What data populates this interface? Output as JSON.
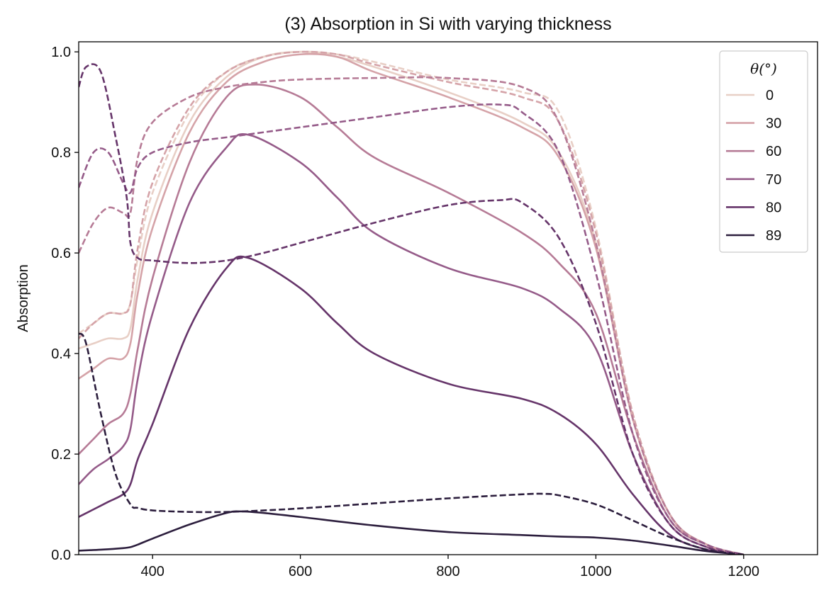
{
  "chart_data": {
    "type": "line",
    "title": "(3) Absorption in Si with varying thickness",
    "xlabel": "",
    "ylabel": "Absorption",
    "xlim": [
      300,
      1300
    ],
    "ylim": [
      0.0,
      1.02
    ],
    "xticks": [
      400,
      600,
      800,
      1000,
      1200
    ],
    "yticks": [
      0.0,
      0.2,
      0.4,
      0.6,
      0.8,
      1.0
    ],
    "xtick_labels": [
      "400",
      "600",
      "800",
      "1000",
      "1200"
    ],
    "ytick_labels": [
      "0.0",
      "0.2",
      "0.4",
      "0.6",
      "0.8",
      "1.0"
    ],
    "grid": false,
    "legend": {
      "title": "θ(°)",
      "placement": "top-right",
      "entries": [
        "0",
        "30",
        "60",
        "70",
        "80",
        "89"
      ]
    },
    "colors": [
      "#e8cfc6",
      "#d5a3a8",
      "#b67b96",
      "#955b89",
      "#66356a",
      "#2c1e3d"
    ],
    "series": [
      {
        "name": "0",
        "linestyle": "solid",
        "x": [
          300,
          320,
          340,
          360,
          370,
          380,
          400,
          450,
          500,
          550,
          600,
          650,
          700,
          800,
          900,
          950,
          1000,
          1050,
          1100,
          1150,
          1200
        ],
        "y": [
          0.41,
          0.42,
          0.43,
          0.43,
          0.45,
          0.55,
          0.68,
          0.86,
          0.95,
          0.99,
          1.0,
          0.99,
          0.97,
          0.92,
          0.86,
          0.8,
          0.62,
          0.27,
          0.08,
          0.02,
          0.0
        ]
      },
      {
        "name": "30",
        "linestyle": "solid",
        "x": [
          300,
          320,
          340,
          360,
          370,
          380,
          400,
          450,
          500,
          550,
          600,
          650,
          700,
          800,
          900,
          950,
          1000,
          1050,
          1100,
          1150,
          1200
        ],
        "y": [
          0.35,
          0.37,
          0.39,
          0.39,
          0.42,
          0.52,
          0.65,
          0.84,
          0.94,
          0.98,
          0.995,
          0.99,
          0.96,
          0.91,
          0.85,
          0.79,
          0.61,
          0.27,
          0.08,
          0.02,
          0.0
        ]
      },
      {
        "name": "60",
        "linestyle": "solid",
        "x": [
          300,
          320,
          340,
          360,
          370,
          380,
          400,
          450,
          500,
          540,
          600,
          650,
          700,
          800,
          900,
          950,
          1000,
          1050,
          1100,
          1150,
          1200
        ],
        "y": [
          0.2,
          0.23,
          0.26,
          0.28,
          0.32,
          0.41,
          0.55,
          0.78,
          0.91,
          0.935,
          0.91,
          0.85,
          0.79,
          0.72,
          0.64,
          0.58,
          0.48,
          0.24,
          0.07,
          0.02,
          0.0
        ]
      },
      {
        "name": "70",
        "linestyle": "solid",
        "x": [
          300,
          320,
          340,
          360,
          370,
          380,
          400,
          450,
          500,
          530,
          600,
          650,
          700,
          800,
          900,
          950,
          1000,
          1050,
          1100,
          1150,
          1200
        ],
        "y": [
          0.14,
          0.17,
          0.19,
          0.215,
          0.25,
          0.35,
          0.48,
          0.7,
          0.81,
          0.835,
          0.78,
          0.71,
          0.64,
          0.57,
          0.53,
          0.49,
          0.41,
          0.2,
          0.06,
          0.015,
          0.0
        ]
      },
      {
        "name": "80",
        "linestyle": "solid",
        "x": [
          300,
          320,
          340,
          360,
          370,
          380,
          400,
          450,
          500,
          530,
          600,
          650,
          700,
          800,
          900,
          950,
          1000,
          1050,
          1100,
          1150,
          1200
        ],
        "y": [
          0.075,
          0.09,
          0.105,
          0.12,
          0.14,
          0.19,
          0.26,
          0.45,
          0.57,
          0.59,
          0.53,
          0.46,
          0.4,
          0.34,
          0.31,
          0.28,
          0.22,
          0.12,
          0.04,
          0.01,
          0.0
        ]
      },
      {
        "name": "89",
        "linestyle": "solid",
        "x": [
          300,
          330,
          360,
          370,
          380,
          400,
          450,
          500,
          520,
          550,
          600,
          700,
          800,
          900,
          950,
          1000,
          1050,
          1100,
          1150,
          1200
        ],
        "y": [
          0.008,
          0.01,
          0.013,
          0.015,
          0.02,
          0.032,
          0.06,
          0.083,
          0.086,
          0.083,
          0.075,
          0.058,
          0.045,
          0.039,
          0.036,
          0.034,
          0.028,
          0.018,
          0.007,
          0.0
        ]
      },
      {
        "name": "0 (dashed)",
        "linestyle": "dashed",
        "x": [
          300,
          320,
          340,
          360,
          370,
          380,
          400,
          450,
          500,
          550,
          600,
          650,
          700,
          800,
          900,
          950,
          1000,
          1050,
          1100,
          1150,
          1200
        ],
        "y": [
          0.44,
          0.46,
          0.48,
          0.48,
          0.5,
          0.59,
          0.72,
          0.88,
          0.96,
          0.99,
          1.0,
          0.995,
          0.98,
          0.945,
          0.92,
          0.88,
          0.65,
          0.28,
          0.08,
          0.02,
          0.0
        ]
      },
      {
        "name": "30 (dashed)",
        "linestyle": "dashed",
        "x": [
          300,
          320,
          340,
          360,
          370,
          380,
          400,
          450,
          500,
          550,
          600,
          650,
          700,
          800,
          900,
          950,
          1000,
          1050,
          1100,
          1150,
          1200
        ],
        "y": [
          0.43,
          0.46,
          0.48,
          0.48,
          0.5,
          0.61,
          0.74,
          0.89,
          0.96,
          0.99,
          1.0,
          0.995,
          0.975,
          0.94,
          0.91,
          0.86,
          0.64,
          0.28,
          0.08,
          0.02,
          0.0
        ]
      },
      {
        "name": "60 (dashed)",
        "linestyle": "dashed",
        "x": [
          300,
          320,
          340,
          360,
          370,
          380,
          400,
          450,
          500,
          550,
          600,
          700,
          800,
          900,
          950,
          1000,
          1050,
          1100,
          1150,
          1200
        ],
        "y": [
          0.6,
          0.66,
          0.69,
          0.68,
          0.68,
          0.79,
          0.86,
          0.91,
          0.93,
          0.94,
          0.945,
          0.948,
          0.948,
          0.93,
          0.86,
          0.62,
          0.27,
          0.08,
          0.02,
          0.0
        ]
      },
      {
        "name": "70 (dashed)",
        "linestyle": "dashed",
        "x": [
          300,
          320,
          340,
          360,
          370,
          380,
          400,
          450,
          500,
          550,
          600,
          700,
          800,
          870,
          900,
          950,
          1000,
          1050,
          1100,
          1150,
          1200
        ],
        "y": [
          0.73,
          0.8,
          0.8,
          0.74,
          0.72,
          0.77,
          0.8,
          0.82,
          0.83,
          0.84,
          0.85,
          0.87,
          0.89,
          0.895,
          0.88,
          0.8,
          0.56,
          0.24,
          0.07,
          0.02,
          0.0
        ]
      },
      {
        "name": "80 (dashed)",
        "linestyle": "dashed",
        "x": [
          300,
          310,
          330,
          350,
          365,
          370,
          380,
          400,
          450,
          500,
          550,
          600,
          700,
          800,
          870,
          900,
          950,
          1000,
          1050,
          1100,
          1150,
          1200
        ],
        "y": [
          0.93,
          0.97,
          0.96,
          0.83,
          0.71,
          0.62,
          0.59,
          0.585,
          0.58,
          0.585,
          0.6,
          0.62,
          0.66,
          0.695,
          0.705,
          0.7,
          0.63,
          0.46,
          0.2,
          0.06,
          0.015,
          0.0
        ]
      },
      {
        "name": "89 (dashed)",
        "linestyle": "dashed",
        "x": [
          300,
          310,
          330,
          350,
          370,
          380,
          400,
          450,
          500,
          550,
          600,
          700,
          800,
          900,
          930,
          950,
          1000,
          1050,
          1100,
          1150,
          1200
        ],
        "y": [
          0.44,
          0.42,
          0.28,
          0.16,
          0.1,
          0.093,
          0.088,
          0.085,
          0.085,
          0.088,
          0.092,
          0.102,
          0.112,
          0.12,
          0.121,
          0.118,
          0.1,
          0.068,
          0.035,
          0.01,
          0.0
        ]
      }
    ]
  }
}
